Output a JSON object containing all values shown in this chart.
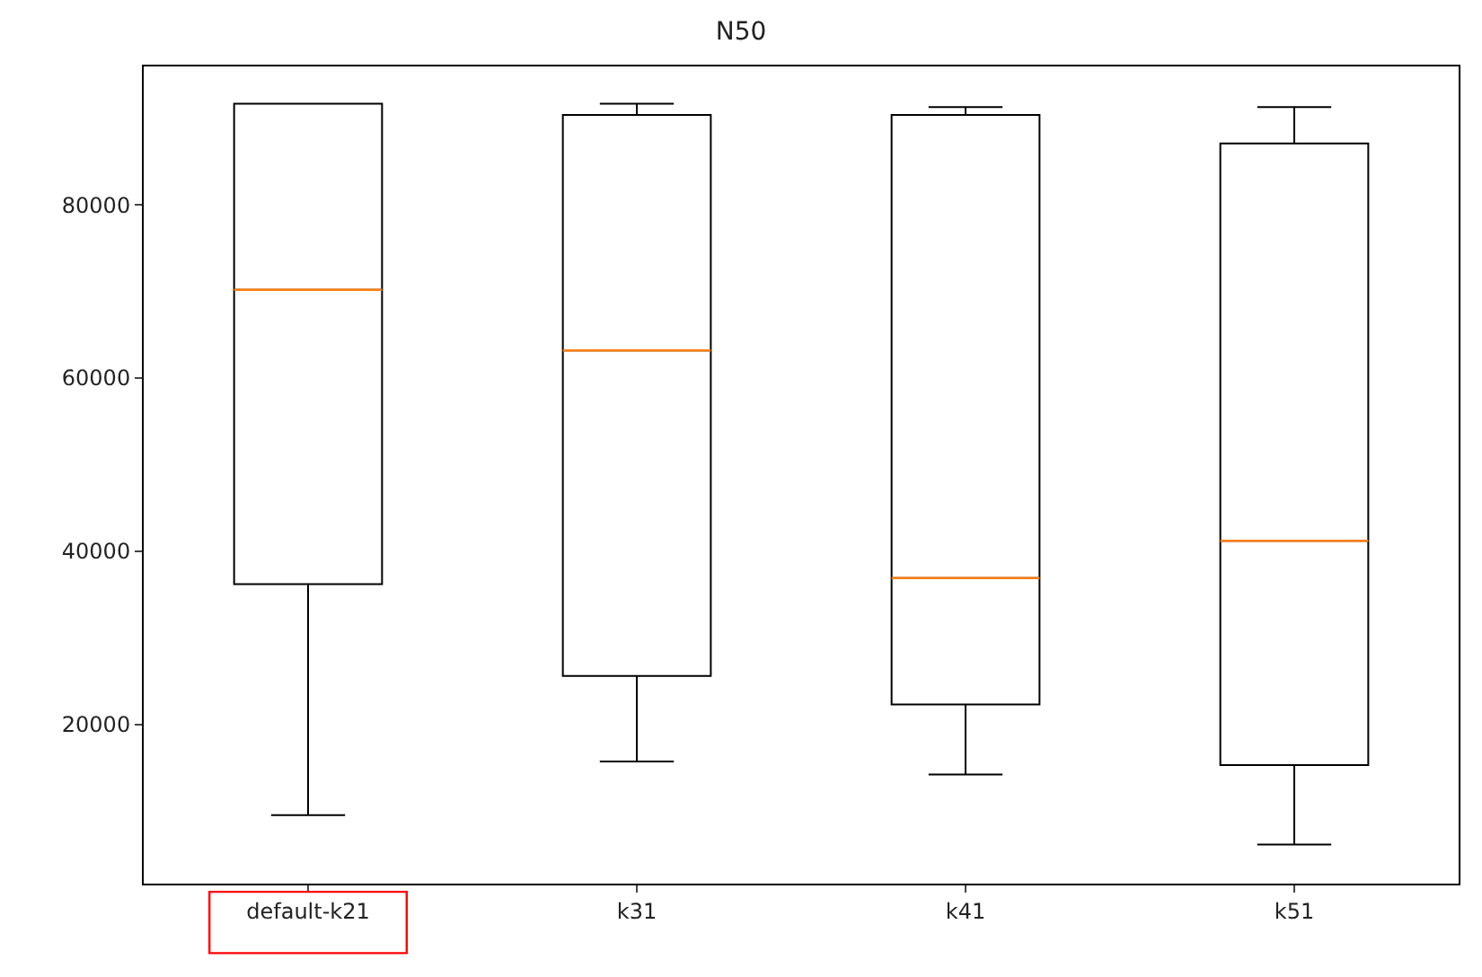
{
  "chart_data": {
    "type": "box",
    "title": "N50",
    "categories": [
      "default-k21",
      "k31",
      "k41",
      "k51"
    ],
    "boxes": [
      {
        "low": 9500,
        "q1": 36200,
        "median": 70200,
        "q3": 91700,
        "high": 91700
      },
      {
        "low": 15700,
        "q1": 25600,
        "median": 63200,
        "q3": 90400,
        "high": 91700
      },
      {
        "low": 14200,
        "q1": 22300,
        "median": 36900,
        "q3": 90400,
        "high": 91300
      },
      {
        "low": 6100,
        "q1": 15300,
        "median": 41200,
        "q3": 87100,
        "high": 91300
      }
    ],
    "color": "#000000",
    "ylim": [
      1600,
      96000
    ],
    "yticks": [
      20000,
      40000,
      60000,
      80000
    ]
  }
}
